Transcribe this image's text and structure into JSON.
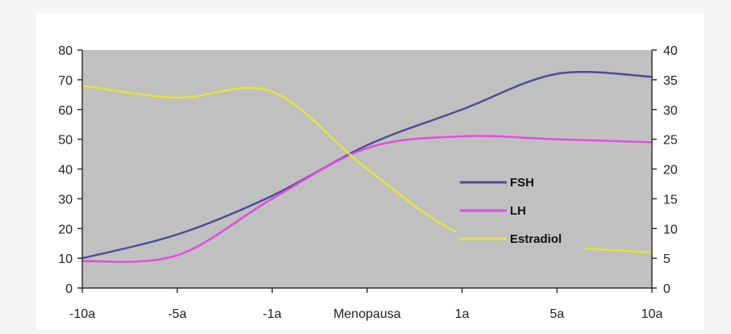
{
  "chart_data": {
    "type": "line",
    "categories": [
      "-10a",
      "-5a",
      "-1a",
      "Menopausa",
      "1a",
      "5a",
      "10a"
    ],
    "y_left": {
      "min": 0,
      "max": 80,
      "ticks": [
        "0",
        "10",
        "20",
        "30",
        "40",
        "50",
        "60",
        "70",
        "80"
      ]
    },
    "y_right": {
      "min": 0,
      "max": 40,
      "ticks": [
        "0",
        "5",
        "10",
        "15",
        "20",
        "25",
        "30",
        "35",
        "40"
      ]
    },
    "series": [
      {
        "name": "FSH",
        "axis": "left",
        "color": "#4b4f96",
        "values": [
          10,
          18,
          31,
          48,
          60,
          72,
          71
        ]
      },
      {
        "name": "LH",
        "axis": "left",
        "color": "#e14de0",
        "values": [
          9,
          11,
          30,
          47,
          51,
          50,
          49
        ]
      },
      {
        "name": "Estradiol",
        "axis": "right",
        "color": "#e6e43a",
        "values": [
          34,
          32,
          33,
          20,
          9,
          7,
          6
        ]
      }
    ],
    "legend_position": "center-right",
    "plot_background": "#c0c0c0",
    "grid": false
  }
}
